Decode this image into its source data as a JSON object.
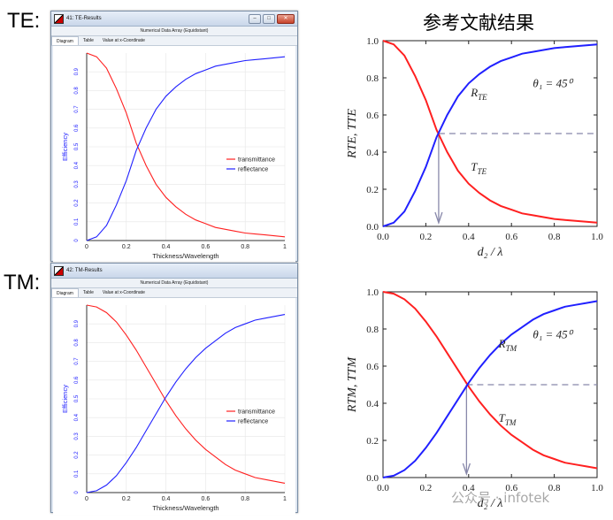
{
  "labels": {
    "te": "TE:",
    "tm": "TM:",
    "ref_title": "参考文献结果"
  },
  "windows": [
    {
      "title": "41: TE-Results",
      "header": "Numerical Data Array (Equidistant)",
      "tabs": [
        "Diagram",
        "Table",
        "Value at x-Coordinate"
      ]
    },
    {
      "title": "42: TM-Results",
      "header": "Numerical Data Array (Equidistant)",
      "tabs": [
        "Diagram",
        "Table",
        "Value at x-Coordinate"
      ]
    }
  ],
  "colors": {
    "transmittance": "#ff2020",
    "reflectance": "#2020ff",
    "dash": "#8888aa"
  },
  "watermark": "公众号 · infotek",
  "chart_data": [
    {
      "type": "line",
      "xlabel": "Thickness/Wavelength",
      "ylabel": "Efficiency",
      "xlim": [
        0,
        1
      ],
      "ylim": [
        0,
        1
      ],
      "xticks": [
        "0",
        "0.2",
        "0.4",
        "0.6",
        "0.8",
        "1"
      ],
      "yticks": [
        "0",
        "0.1",
        "0.2",
        "0.3",
        "0.4",
        "0.5",
        "0.6",
        "0.7",
        "0.8",
        "0.9"
      ],
      "legend": "right",
      "x": [
        0,
        0.05,
        0.1,
        0.15,
        0.2,
        0.25,
        0.3,
        0.35,
        0.4,
        0.45,
        0.5,
        0.55,
        0.6,
        0.65,
        0.7,
        0.75,
        0.8,
        0.85,
        0.9,
        0.95,
        1.0
      ],
      "series": [
        {
          "name": "transmittance",
          "values": [
            1.0,
            0.98,
            0.92,
            0.81,
            0.68,
            0.52,
            0.4,
            0.3,
            0.23,
            0.18,
            0.14,
            0.11,
            0.09,
            0.07,
            0.06,
            0.05,
            0.04,
            0.035,
            0.03,
            0.025,
            0.02
          ]
        },
        {
          "name": "reflectance",
          "values": [
            0.0,
            0.02,
            0.08,
            0.19,
            0.32,
            0.48,
            0.6,
            0.7,
            0.77,
            0.82,
            0.86,
            0.89,
            0.91,
            0.93,
            0.94,
            0.95,
            0.96,
            0.965,
            0.97,
            0.975,
            0.98
          ]
        }
      ]
    },
    {
      "type": "line",
      "xlabel": "d₂ / λ",
      "ylabel": "R_TE, T_TE",
      "xlim": [
        0,
        1
      ],
      "ylim": [
        0,
        1
      ],
      "xticks": [
        "0.0",
        "0.2",
        "0.4",
        "0.6",
        "0.8",
        "1.0"
      ],
      "yticks": [
        "0.0",
        "0.2",
        "0.4",
        "0.6",
        "0.8",
        "1.0"
      ],
      "annotations": {
        "angle": "θ₁ = 45⁰",
        "r": "R_TE",
        "t": "T_TE",
        "crossing_x": 0.26,
        "crossing_y": 0.5
      },
      "x": [
        0,
        0.05,
        0.1,
        0.15,
        0.2,
        0.25,
        0.3,
        0.35,
        0.4,
        0.45,
        0.5,
        0.55,
        0.6,
        0.65,
        0.7,
        0.75,
        0.8,
        0.85,
        0.9,
        0.95,
        1.0
      ],
      "series": [
        {
          "values": [
            1.0,
            0.98,
            0.92,
            0.81,
            0.68,
            0.52,
            0.4,
            0.3,
            0.23,
            0.18,
            0.14,
            0.11,
            0.09,
            0.07,
            0.06,
            0.05,
            0.04,
            0.035,
            0.03,
            0.025,
            0.02
          ]
        },
        {
          "values": [
            0.0,
            0.02,
            0.08,
            0.19,
            0.32,
            0.48,
            0.6,
            0.7,
            0.77,
            0.82,
            0.86,
            0.89,
            0.91,
            0.93,
            0.94,
            0.95,
            0.96,
            0.965,
            0.97,
            0.975,
            0.98
          ]
        }
      ]
    },
    {
      "type": "line",
      "xlabel": "Thickness/Wavelength",
      "ylabel": "Efficiency",
      "xlim": [
        0,
        1
      ],
      "ylim": [
        0,
        1
      ],
      "xticks": [
        "0",
        "0.2",
        "0.4",
        "0.6",
        "0.8",
        "1"
      ],
      "yticks": [
        "0",
        "0.1",
        "0.2",
        "0.3",
        "0.4",
        "0.5",
        "0.6",
        "0.7",
        "0.8",
        "0.9"
      ],
      "legend": "right",
      "x": [
        0,
        0.05,
        0.1,
        0.15,
        0.2,
        0.25,
        0.3,
        0.35,
        0.4,
        0.45,
        0.5,
        0.55,
        0.6,
        0.65,
        0.7,
        0.75,
        0.8,
        0.85,
        0.9,
        0.95,
        1.0
      ],
      "series": [
        {
          "name": "transmittance",
          "values": [
            1.0,
            0.99,
            0.96,
            0.91,
            0.84,
            0.76,
            0.67,
            0.58,
            0.49,
            0.41,
            0.34,
            0.28,
            0.23,
            0.19,
            0.15,
            0.12,
            0.1,
            0.08,
            0.07,
            0.06,
            0.05
          ]
        },
        {
          "name": "reflectance",
          "values": [
            0.0,
            0.01,
            0.04,
            0.09,
            0.16,
            0.24,
            0.33,
            0.42,
            0.51,
            0.59,
            0.66,
            0.72,
            0.77,
            0.81,
            0.85,
            0.88,
            0.9,
            0.92,
            0.93,
            0.94,
            0.95
          ]
        }
      ]
    },
    {
      "type": "line",
      "xlabel": "d₂ / λ",
      "ylabel": "R_TM, T_TM",
      "xlim": [
        0,
        1
      ],
      "ylim": [
        0,
        1
      ],
      "xticks": [
        "0.0",
        "0.2",
        "0.4",
        "0.6",
        "0.8",
        "1.0"
      ],
      "yticks": [
        "0.0",
        "0.2",
        "0.4",
        "0.6",
        "0.8",
        "1.0"
      ],
      "annotations": {
        "angle": "θ₁ = 45⁰",
        "r": "R_TM",
        "t": "T_TM",
        "crossing_x": 0.39,
        "crossing_y": 0.5
      },
      "x": [
        0,
        0.05,
        0.1,
        0.15,
        0.2,
        0.25,
        0.3,
        0.35,
        0.4,
        0.45,
        0.5,
        0.55,
        0.6,
        0.65,
        0.7,
        0.75,
        0.8,
        0.85,
        0.9,
        0.95,
        1.0
      ],
      "series": [
        {
          "values": [
            1.0,
            0.99,
            0.96,
            0.91,
            0.84,
            0.76,
            0.67,
            0.58,
            0.49,
            0.41,
            0.34,
            0.28,
            0.23,
            0.19,
            0.15,
            0.12,
            0.1,
            0.08,
            0.07,
            0.06,
            0.05
          ]
        },
        {
          "values": [
            0.0,
            0.01,
            0.04,
            0.09,
            0.16,
            0.24,
            0.33,
            0.42,
            0.51,
            0.59,
            0.66,
            0.72,
            0.77,
            0.81,
            0.85,
            0.88,
            0.9,
            0.92,
            0.93,
            0.94,
            0.95
          ]
        }
      ]
    }
  ]
}
